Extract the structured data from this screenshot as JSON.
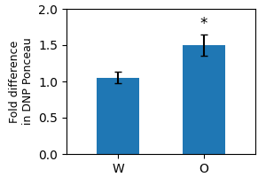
{
  "chart_data": {
    "type": "bar",
    "categories": [
      "W",
      "O"
    ],
    "values": [
      1.05,
      1.5
    ],
    "errors": [
      0.08,
      0.15
    ],
    "ylabel": "Fold difference\nin DNP Ponceau",
    "ylim": [
      0.0,
      2.0
    ],
    "yticks": [
      {
        "value": 0.0,
        "label": "0.0"
      },
      {
        "value": 0.5,
        "label": "0.5"
      },
      {
        "value": 1.0,
        "label": "1.0"
      },
      {
        "value": 1.5,
        "label": "1.5"
      },
      {
        "value": 2.0,
        "label": "2.0"
      }
    ],
    "annotations": [
      {
        "text": "*",
        "category": "O"
      }
    ],
    "grid": false
  }
}
